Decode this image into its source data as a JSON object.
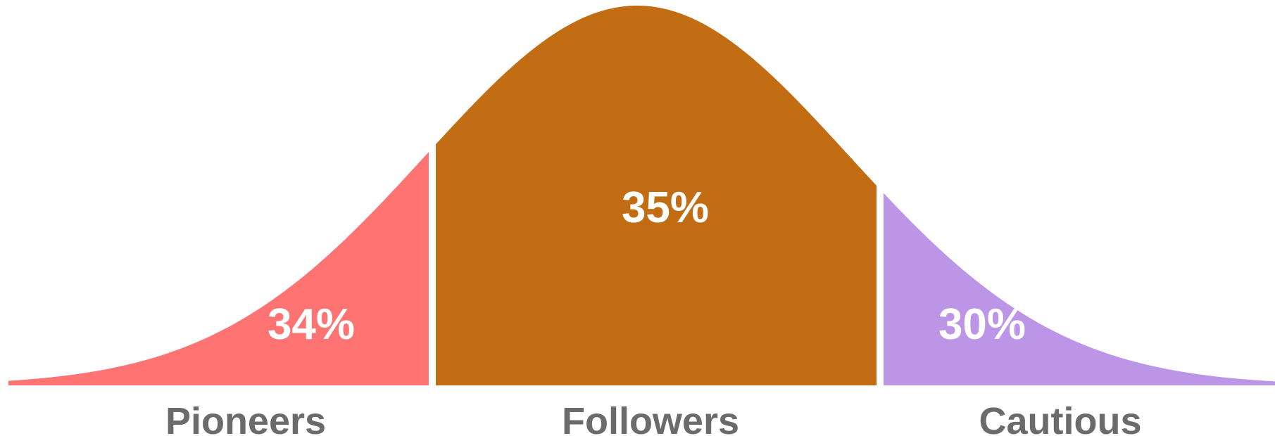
{
  "chart_data": {
    "type": "area",
    "title": "",
    "segments": [
      {
        "name": "Pioneers",
        "label": "34%",
        "value": 34,
        "color": "#FF7373"
      },
      {
        "name": "Followers",
        "label": "35%",
        "value": 35,
        "color": "#C26D14"
      },
      {
        "name": "Cautious",
        "label": "30%",
        "value": 30,
        "color": "#BD95E6"
      }
    ],
    "categories": [
      "Pioneers",
      "Followers",
      "Cautious"
    ],
    "curve": "bell",
    "background": "#FFFFFF",
    "category_label_color": "#6B6B6B",
    "value_label_color": "#FFFFFF"
  }
}
